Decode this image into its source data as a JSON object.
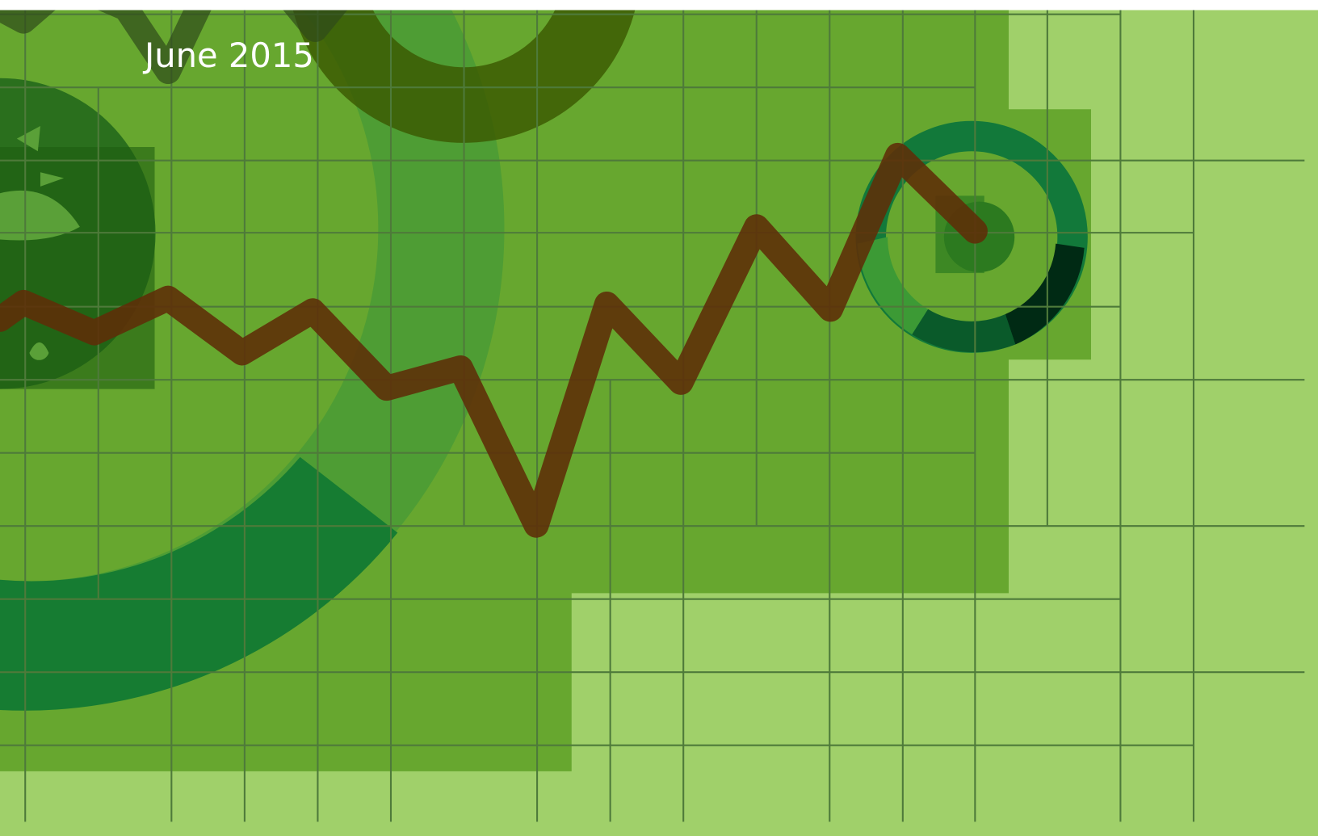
{
  "cover": {
    "date": "June 2015"
  }
}
